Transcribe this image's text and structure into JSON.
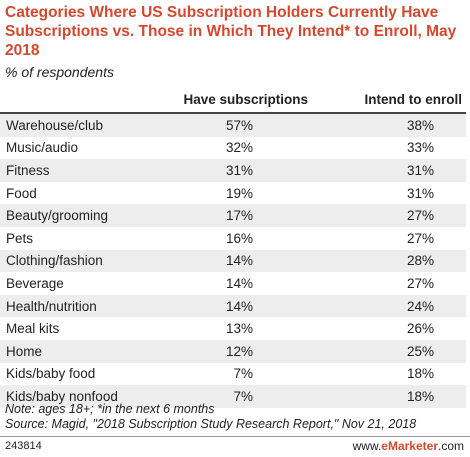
{
  "title": "Categories Where US Subscription Holders Currently Have Subscriptions vs. Those in Which They Intend* to Enroll, May 2018",
  "subtitle": "% of respondents",
  "chart_data": {
    "type": "table",
    "columns": [
      "",
      "Have subscriptions",
      "Intend to enroll"
    ],
    "rows": [
      {
        "category": "Warehouse/club",
        "have": "57%",
        "intend": "38%"
      },
      {
        "category": "Music/audio",
        "have": "32%",
        "intend": "33%"
      },
      {
        "category": "Fitness",
        "have": "31%",
        "intend": "31%"
      },
      {
        "category": "Food",
        "have": "19%",
        "intend": "31%"
      },
      {
        "category": "Beauty/grooming",
        "have": "17%",
        "intend": "27%"
      },
      {
        "category": "Pets",
        "have": "16%",
        "intend": "27%"
      },
      {
        "category": "Clothing/fashion",
        "have": "14%",
        "intend": "28%"
      },
      {
        "category": "Beverage",
        "have": "14%",
        "intend": "27%"
      },
      {
        "category": "Health/nutrition",
        "have": "14%",
        "intend": "24%"
      },
      {
        "category": "Meal kits",
        "have": "13%",
        "intend": "26%"
      },
      {
        "category": "Home",
        "have": "12%",
        "intend": "25%"
      },
      {
        "category": "Kids/baby food",
        "have": "7%",
        "intend": "18%"
      },
      {
        "category": "Kids/baby nonfood",
        "have": "7%",
        "intend": "18%"
      }
    ]
  },
  "note": "Note: ages 18+; *in the next 6 months",
  "source": "Source: Magid, \"2018 Subscription Study Research Report,\" Nov 21, 2018",
  "chart_id": "243814",
  "brand": {
    "prefix": "www.",
    "name": "eMarketer",
    "suffix": ".com"
  },
  "colors": {
    "title": "#d3492f",
    "stripe": "#ededed"
  }
}
